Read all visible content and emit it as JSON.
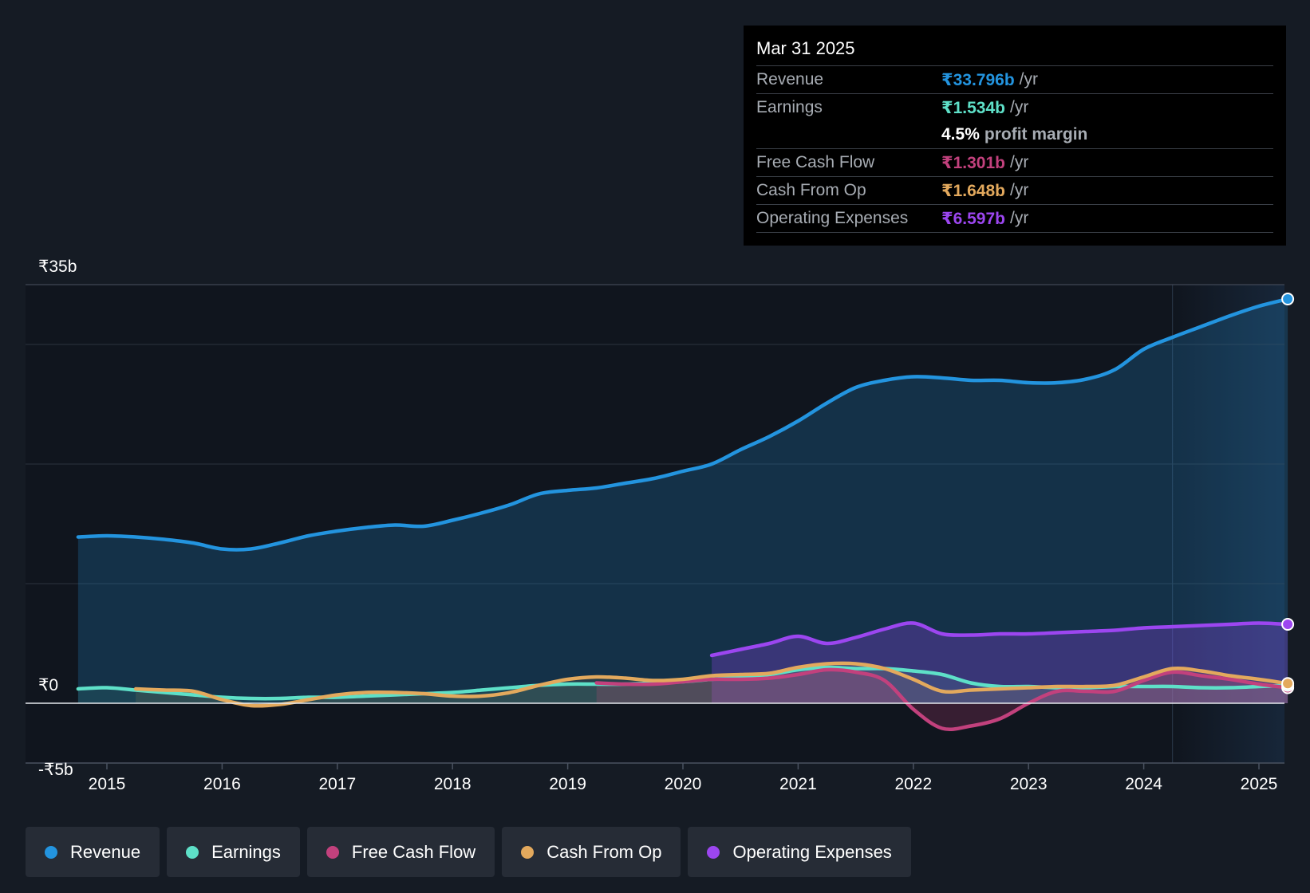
{
  "colors": {
    "revenue": "#2394df",
    "earnings": "#5ee0c8",
    "fcf": "#c2417d",
    "cfo": "#e3a95d",
    "opex": "#9c46f0"
  },
  "tooltip": {
    "date": "Mar 31 2025",
    "rows": [
      {
        "label": "Revenue",
        "value": "₹33.796b",
        "unit": "/yr"
      },
      {
        "label": "Earnings",
        "value": "₹1.534b",
        "unit": "/yr"
      },
      {
        "margin_value": "4.5%",
        "margin_label": "profit margin"
      },
      {
        "label": "Free Cash Flow",
        "value": "₹1.301b",
        "unit": "/yr"
      },
      {
        "label": "Cash From Op",
        "value": "₹1.648b",
        "unit": "/yr"
      },
      {
        "label": "Operating Expenses",
        "value": "₹6.597b",
        "unit": "/yr"
      }
    ]
  },
  "legend": [
    {
      "label": "Revenue",
      "key": "revenue"
    },
    {
      "label": "Earnings",
      "key": "earnings"
    },
    {
      "label": "Free Cash Flow",
      "key": "fcf"
    },
    {
      "label": "Cash From Op",
      "key": "cfo"
    },
    {
      "label": "Operating Expenses",
      "key": "opex"
    }
  ],
  "chart_data": {
    "type": "line",
    "title": "",
    "xlabel": "",
    "ylabel": "",
    "ylim": [
      -5,
      35
    ],
    "xlim": [
      2014.55,
      2025.25
    ],
    "x_ticks": [
      2015,
      2016,
      2017,
      2018,
      2019,
      2020,
      2021,
      2022,
      2023,
      2024,
      2025
    ],
    "x_tick_labels": [
      "2015",
      "2016",
      "2017",
      "2018",
      "2019",
      "2020",
      "2021",
      "2022",
      "2023",
      "2024",
      "2025"
    ],
    "y_labels": [
      {
        "value": 35,
        "label": "₹35b"
      },
      {
        "value": 0,
        "label": "₹0"
      },
      {
        "value": -5,
        "label": "-₹5b"
      }
    ],
    "gridlines": [
      35,
      30,
      20,
      10,
      0,
      -5
    ],
    "highlight_start": 2024.25,
    "series": [
      {
        "name": "Revenue",
        "key": "revenue",
        "fill": true,
        "x": [
          2014.75,
          2015.0,
          2015.25,
          2015.5,
          2015.75,
          2016.0,
          2016.25,
          2016.5,
          2016.75,
          2017.0,
          2017.25,
          2017.5,
          2017.75,
          2018.0,
          2018.25,
          2018.5,
          2018.75,
          2019.0,
          2019.25,
          2019.5,
          2019.75,
          2020.0,
          2020.25,
          2020.5,
          2020.75,
          2021.0,
          2021.25,
          2021.5,
          2021.75,
          2022.0,
          2022.25,
          2022.5,
          2022.75,
          2023.0,
          2023.25,
          2023.5,
          2023.75,
          2024.0,
          2024.25,
          2024.5,
          2024.75,
          2025.0,
          2025.25
        ],
        "y": [
          13.9,
          14.0,
          13.9,
          13.7,
          13.4,
          12.9,
          12.9,
          13.4,
          14.0,
          14.4,
          14.7,
          14.9,
          14.8,
          15.3,
          15.9,
          16.6,
          17.5,
          17.8,
          18.0,
          18.4,
          18.8,
          19.4,
          20.0,
          21.2,
          22.3,
          23.6,
          25.1,
          26.4,
          27.0,
          27.3,
          27.2,
          27.0,
          27.0,
          26.8,
          26.8,
          27.1,
          27.9,
          29.6,
          30.6,
          31.5,
          32.4,
          33.2,
          33.8
        ]
      },
      {
        "name": "Earnings",
        "key": "earnings",
        "fill": true,
        "x": [
          2014.75,
          2015.0,
          2015.25,
          2015.5,
          2015.75,
          2016.0,
          2016.25,
          2016.5,
          2016.75,
          2017.0,
          2017.25,
          2017.5,
          2017.75,
          2018.0,
          2018.25,
          2018.5,
          2018.75,
          2019.0,
          2019.25,
          2019.5,
          2019.75,
          2020.0,
          2020.25,
          2020.5,
          2020.75,
          2021.0,
          2021.25,
          2021.5,
          2021.75,
          2022.0,
          2022.25,
          2022.5,
          2022.75,
          2023.0,
          2023.25,
          2023.5,
          2023.75,
          2024.0,
          2024.25,
          2024.5,
          2024.75,
          2025.0,
          2025.25
        ],
        "y": [
          1.2,
          1.3,
          1.1,
          0.9,
          0.7,
          0.5,
          0.4,
          0.4,
          0.5,
          0.5,
          0.6,
          0.7,
          0.8,
          0.9,
          1.1,
          1.3,
          1.5,
          1.6,
          1.6,
          1.6,
          1.7,
          1.8,
          2.0,
          2.2,
          2.4,
          2.8,
          3.0,
          2.9,
          2.9,
          2.7,
          2.4,
          1.7,
          1.4,
          1.4,
          1.3,
          1.3,
          1.4,
          1.4,
          1.4,
          1.3,
          1.3,
          1.4,
          1.5
        ]
      },
      {
        "name": "Free Cash Flow",
        "key": "fcf",
        "fill": true,
        "x": [
          2019.25,
          2019.5,
          2019.75,
          2020.0,
          2020.25,
          2020.5,
          2020.75,
          2021.0,
          2021.25,
          2021.5,
          2021.75,
          2022.0,
          2022.25,
          2022.5,
          2022.75,
          2023.0,
          2023.25,
          2023.5,
          2023.75,
          2024.0,
          2024.25,
          2024.5,
          2024.75,
          2025.0,
          2025.25
        ],
        "y": [
          1.7,
          1.6,
          1.6,
          1.8,
          2.0,
          2.0,
          2.1,
          2.4,
          2.8,
          2.6,
          1.9,
          -0.5,
          -2.1,
          -1.9,
          -1.3,
          0.0,
          1.0,
          1.0,
          1.0,
          1.9,
          2.6,
          2.3,
          2.0,
          1.6,
          1.3
        ]
      },
      {
        "name": "Cash From Op",
        "key": "cfo",
        "fill": true,
        "x": [
          2015.25,
          2015.5,
          2015.75,
          2016.0,
          2016.25,
          2016.5,
          2016.75,
          2017.0,
          2017.25,
          2017.5,
          2017.75,
          2018.0,
          2018.25,
          2018.5,
          2018.75,
          2019.0,
          2019.25,
          2019.5,
          2019.75,
          2020.0,
          2020.25,
          2020.5,
          2020.75,
          2021.0,
          2021.25,
          2021.5,
          2021.75,
          2022.0,
          2022.25,
          2022.5,
          2022.75,
          2023.0,
          2023.25,
          2023.5,
          2023.75,
          2024.0,
          2024.25,
          2024.5,
          2024.75,
          2025.0,
          2025.25
        ],
        "y": [
          1.2,
          1.1,
          1.0,
          0.3,
          -0.2,
          -0.1,
          0.3,
          0.7,
          0.9,
          0.9,
          0.8,
          0.6,
          0.6,
          0.9,
          1.5,
          2.0,
          2.2,
          2.1,
          1.9,
          2.0,
          2.3,
          2.4,
          2.5,
          3.0,
          3.3,
          3.3,
          2.9,
          2.0,
          1.0,
          1.1,
          1.2,
          1.3,
          1.4,
          1.4,
          1.5,
          2.2,
          2.9,
          2.7,
          2.3,
          2.0,
          1.65
        ]
      },
      {
        "name": "Operating Expenses",
        "key": "opex",
        "fill": true,
        "x": [
          2020.25,
          2020.5,
          2020.75,
          2021.0,
          2021.25,
          2021.5,
          2021.75,
          2022.0,
          2022.25,
          2022.5,
          2022.75,
          2023.0,
          2023.25,
          2023.5,
          2023.75,
          2024.0,
          2024.25,
          2024.5,
          2024.75,
          2025.0,
          2025.25
        ],
        "y": [
          4.0,
          4.5,
          5.0,
          5.6,
          5.0,
          5.5,
          6.2,
          6.7,
          5.8,
          5.7,
          5.8,
          5.8,
          5.9,
          6.0,
          6.1,
          6.3,
          6.4,
          6.5,
          6.6,
          6.7,
          6.6
        ]
      }
    ]
  }
}
